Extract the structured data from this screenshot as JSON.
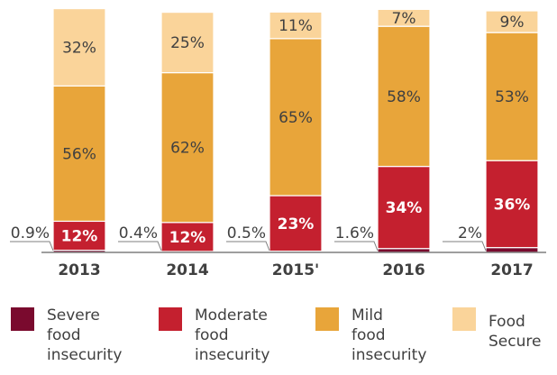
{
  "chart_data": {
    "type": "bar",
    "stacked": true,
    "categories": [
      "2013",
      "2014",
      "2015'",
      "2016",
      "2017"
    ],
    "series": [
      {
        "name": "Severe food insecurity",
        "values": [
          0.9,
          0.4,
          0.5,
          1.6,
          2
        ],
        "labels": [
          "0.9%",
          "0.4%",
          "0.5%",
          "1.6%",
          "2%"
        ],
        "color": "#7a0a2e"
      },
      {
        "name": "Moderate food insecurity",
        "values": [
          12,
          12,
          23,
          34,
          36
        ],
        "labels": [
          "12%",
          "12%",
          "23%",
          "34%",
          "36%"
        ],
        "color": "#c4202f"
      },
      {
        "name": "Mild food insecurity",
        "values": [
          56,
          62,
          65,
          58,
          53
        ],
        "labels": [
          "56%",
          "62%",
          "65%",
          "58%",
          "53%"
        ],
        "color": "#e8a53a"
      },
      {
        "name": "Food Secure",
        "values": [
          32,
          25,
          11,
          7,
          9
        ],
        "labels": [
          "32%",
          "25%",
          "11%",
          "7%",
          "9%"
        ],
        "color": "#fad49a"
      }
    ],
    "ylim": [
      0,
      100
    ],
    "title": "",
    "xlabel": "",
    "ylabel": "",
    "grid": false,
    "legend": {
      "placement": "bottom",
      "entries": [
        {
          "lines": [
            "Severe",
            "food",
            "insecurity"
          ],
          "color": "#7a0a2e"
        },
        {
          "lines": [
            "Moderate",
            "food",
            "insecurity"
          ],
          "color": "#c4202f"
        },
        {
          "lines": [
            "Mild",
            "food",
            "insecurity"
          ],
          "color": "#e8a53a"
        },
        {
          "lines": [
            "Food",
            "Secure"
          ],
          "color": "#fad49a"
        }
      ]
    }
  }
}
